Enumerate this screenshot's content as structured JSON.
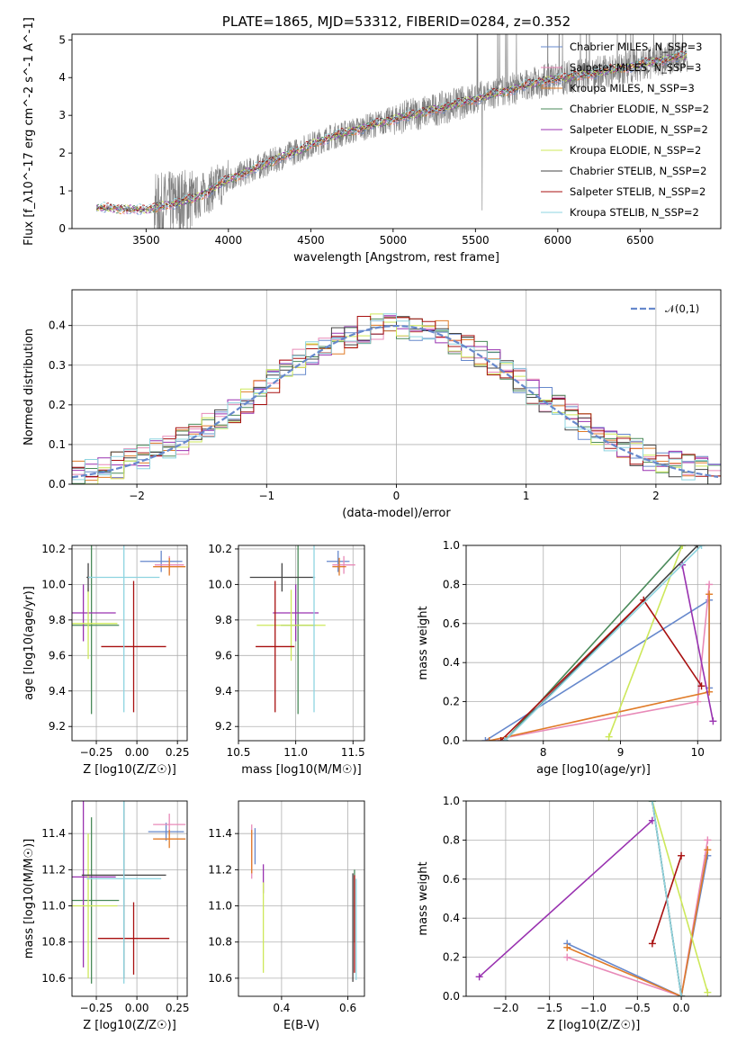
{
  "colors": [
    "#6688cc",
    "#e88ab8",
    "#e07b28",
    "#4a8a5a",
    "#9932b0",
    "#cde85a",
    "#444444",
    "#a81010",
    "#8ed4e0"
  ],
  "chart_data": [
    {
      "id": "spectrum",
      "type": "line",
      "title": "PLATE=1865, MJD=53312, FIBERID=0284, z=0.352",
      "xlabel": "wavelength [Angstrom, rest frame]",
      "ylabel": "Flux [f_λ10^-17 erg cm^-2 s^-1 A^-1]",
      "xlim": [
        3050,
        6990
      ],
      "ylim": [
        0,
        5.15
      ],
      "xticks": [
        3500,
        4000,
        4500,
        5000,
        5500,
        6000,
        6500
      ],
      "yticks": [
        0,
        1,
        2,
        3,
        4,
        5
      ],
      "grid": false,
      "legend_position": "upper-right",
      "legend": [
        "Chabrier MILES, N_SSP=3",
        "Salpeter MILES, N_SSP=3",
        "Kroupa MILES, N_SSP=3",
        "Chabrier ELODIE, N_SSP=2",
        "Salpeter ELODIE, N_SSP=2",
        "Kroupa ELODIE, N_SSP=2",
        "Chabrier STELIB, N_SSP=2",
        "Salpeter STELIB, N_SSP=2",
        "Kroupa STELIB, N_SSP=2"
      ],
      "observed_color": "#808080",
      "model_continuum": {
        "x": [
          3200,
          3500,
          3800,
          4000,
          4300,
          4600,
          4800,
          5000,
          5300,
          5600,
          5900,
          6200,
          6500,
          6790
        ],
        "y": [
          0.55,
          0.5,
          0.8,
          1.3,
          1.85,
          2.4,
          2.65,
          2.9,
          3.2,
          3.55,
          3.9,
          4.1,
          4.35,
          4.6
        ]
      }
    },
    {
      "id": "residuals",
      "type": "histogram",
      "xlabel": "(data-model)/error",
      "ylabel": "Normed distribution",
      "xlim": [
        -2.5,
        2.5
      ],
      "ylim": [
        0,
        0.49
      ],
      "xticks": [
        -2,
        -1,
        0,
        1,
        2
      ],
      "yticks": [
        0.0,
        0.1,
        0.2,
        0.3,
        0.4
      ],
      "grid": true,
      "legend_position": "upper-right",
      "legend": [
        "𝒩(0,1)"
      ],
      "bin_width": 0.1,
      "bins_start": -2.5,
      "gaussian": {
        "mean": 0,
        "sigma": 1,
        "color": "#6688cc",
        "style": "dashed"
      }
    },
    {
      "id": "age-vs-Z",
      "type": "errorbar",
      "xlabel": "Z [log10(Z/Z☉)]",
      "ylabel": "age [log10(age/yr)]",
      "xlim": [
        -0.4,
        0.31
      ],
      "ylim": [
        9.12,
        10.22
      ],
      "xticks": [
        -0.25,
        0.0,
        0.25
      ],
      "yticks": [
        9.2,
        9.4,
        9.6,
        9.8,
        10.0,
        10.2
      ],
      "grid": true,
      "points": [
        {
          "x": 0.15,
          "y": 10.13,
          "xerr": 0.13,
          "yerr": 0.06
        },
        {
          "x": 0.2,
          "y": 10.11,
          "xerr": 0.09,
          "yerr": 0.05
        },
        {
          "x": 0.2,
          "y": 10.1,
          "xerr": 0.1,
          "yerr": 0.05
        },
        {
          "x": -0.28,
          "y": 9.77,
          "xerr": 0.17,
          "yerr": 0.5
        },
        {
          "x": -0.33,
          "y": 9.84,
          "xerr": 0.2,
          "yerr": 0.16
        },
        {
          "x": -0.3,
          "y": 9.78,
          "xerr": 0.18,
          "yerr": 0.2
        },
        {
          "x": -0.3,
          "y": 10.04,
          "xerr": 0.01,
          "yerr": 0.08
        },
        {
          "x": -0.02,
          "y": 9.65,
          "xerr": 0.2,
          "yerr": 0.37
        },
        {
          "x": -0.08,
          "y": 10.04,
          "xerr": 0.22,
          "yerr": 0.76
        }
      ]
    },
    {
      "id": "age-vs-mass",
      "type": "errorbar",
      "xlabel": "mass [log10(M/M☉)]",
      "ylabel": "",
      "xlim": [
        10.5,
        11.6
      ],
      "ylim": [
        9.12,
        10.22
      ],
      "xticks": [
        10.5,
        11.0,
        11.5
      ],
      "yticks": [
        9.2,
        9.4,
        9.6,
        9.8,
        10.0,
        10.2
      ],
      "grid": true,
      "points": [
        {
          "x": 11.37,
          "y": 10.13,
          "xerr": 0.1,
          "yerr": 0.06
        },
        {
          "x": 11.42,
          "y": 10.11,
          "xerr": 0.1,
          "yerr": 0.05
        },
        {
          "x": 11.38,
          "y": 10.1,
          "xerr": 0.06,
          "yerr": 0.05
        },
        {
          "x": 11.02,
          "y": 9.77,
          "xerr": 0.15,
          "yerr": 0.5
        },
        {
          "x": 11.0,
          "y": 9.84,
          "xerr": 0.2,
          "yerr": 0.16
        },
        {
          "x": 10.96,
          "y": 9.77,
          "xerr": 0.3,
          "yerr": 0.2
        },
        {
          "x": 10.88,
          "y": 10.04,
          "xerr": 0.28,
          "yerr": 0.08
        },
        {
          "x": 10.82,
          "y": 9.65,
          "xerr": 0.17,
          "yerr": 0.37
        },
        {
          "x": 11.16,
          "y": 10.04,
          "xerr": 0.01,
          "yerr": 0.76
        }
      ]
    },
    {
      "id": "massweight-vs-age",
      "type": "line",
      "xlabel": "age [log10(age/yr)]",
      "ylabel": "mass weight",
      "xlim": [
        7.0,
        10.3
      ],
      "ylim": [
        0,
        1.0
      ],
      "xticks": [
        8,
        9,
        10
      ],
      "yticks": [
        0.0,
        0.2,
        0.4,
        0.6,
        0.8,
        1.0
      ],
      "grid": true,
      "series": [
        {
          "x": [
            7.25,
            10.15,
            10.15
          ],
          "y": [
            0.0,
            0.72,
            0.27
          ]
        },
        {
          "x": [
            7.3,
            10.0,
            10.15
          ],
          "y": [
            0.0,
            0.2,
            0.8
          ]
        },
        {
          "x": [
            7.3,
            10.15,
            10.15
          ],
          "y": [
            0.0,
            0.25,
            0.75
          ]
        },
        {
          "x": [
            7.5,
            9.8
          ],
          "y": [
            0.0,
            1.0
          ]
        },
        {
          "x": [
            9.8,
            10.2
          ],
          "y": [
            0.9,
            0.1
          ]
        },
        {
          "x": [
            8.85,
            9.8
          ],
          "y": [
            0.02,
            1.0
          ]
        },
        {
          "x": [
            7.5,
            10.0
          ],
          "y": [
            0.0,
            1.0
          ]
        },
        {
          "x": [
            7.45,
            9.3,
            10.05
          ],
          "y": [
            0.0,
            0.72,
            0.28
          ]
        },
        {
          "x": [
            7.5,
            10.05
          ],
          "y": [
            0.0,
            1.0
          ]
        }
      ]
    },
    {
      "id": "mass-vs-Z",
      "type": "errorbar",
      "xlabel": "Z [log10(Z/Z☉)]",
      "ylabel": "mass [log10(M/M☉)]",
      "xlim": [
        -0.4,
        0.31
      ],
      "ylim": [
        10.5,
        11.58
      ],
      "xticks": [
        -0.25,
        0.0,
        0.25
      ],
      "yticks": [
        10.6,
        10.8,
        11.0,
        11.2,
        11.4
      ],
      "grid": true,
      "points": [
        {
          "x": 0.18,
          "y": 11.41,
          "xerr": 0.11,
          "yerr": 0.05
        },
        {
          "x": 0.2,
          "y": 11.45,
          "xerr": 0.1,
          "yerr": 0.06
        },
        {
          "x": 0.2,
          "y": 11.37,
          "xerr": 0.1,
          "yerr": 0.05
        },
        {
          "x": -0.28,
          "y": 11.03,
          "xerr": 0.17,
          "yerr": 0.46
        },
        {
          "x": -0.33,
          "y": 11.16,
          "xerr": 0.2,
          "yerr": 0.5
        },
        {
          "x": -0.3,
          "y": 11.0,
          "xerr": 0.18,
          "yerr": 0.4
        },
        {
          "x": -0.08,
          "y": 11.17,
          "xerr": 0.26,
          "yerr": 0.57
        },
        {
          "x": -0.02,
          "y": 10.82,
          "xerr": 0.22,
          "yerr": 0.2
        },
        {
          "x": -0.08,
          "y": 11.15,
          "xerr": 0.23,
          "yerr": 0.58
        }
      ]
    },
    {
      "id": "mass-vs-EBV",
      "type": "errorbar",
      "xlabel": "E(B-V)",
      "ylabel": "",
      "xlim": [
        0.27,
        0.65
      ],
      "ylim": [
        10.5,
        11.58
      ],
      "xticks": [
        0.4,
        0.6
      ],
      "yticks": [
        10.6,
        10.8,
        11.0,
        11.2,
        11.4
      ],
      "grid": true,
      "points": [
        {
          "x": 0.32,
          "y": 11.33,
          "xerr": 0.0,
          "yerr": 0.1
        },
        {
          "x": 0.31,
          "y": 11.3,
          "xerr": 0.0,
          "yerr": 0.15
        },
        {
          "x": 0.31,
          "y": 11.3,
          "xerr": 0.0,
          "yerr": 0.12
        },
        {
          "x": 0.62,
          "y": 11.0,
          "xerr": 0.0,
          "yerr": 0.2
        },
        {
          "x": 0.345,
          "y": 11.15,
          "xerr": 0.0,
          "yerr": 0.08
        },
        {
          "x": 0.345,
          "y": 10.88,
          "xerr": 0.0,
          "yerr": 0.25
        },
        {
          "x": 0.615,
          "y": 10.88,
          "xerr": 0.0,
          "yerr": 0.3
        },
        {
          "x": 0.62,
          "y": 10.9,
          "xerr": 0.0,
          "yerr": 0.27
        },
        {
          "x": 0.625,
          "y": 10.87,
          "xerr": 0.0,
          "yerr": 0.28
        }
      ]
    },
    {
      "id": "massweight-vs-Z",
      "type": "line",
      "xlabel": "Z [log10(Z/Z☉)]",
      "ylabel": "mass weight",
      "xlim": [
        -2.45,
        0.45
      ],
      "ylim": [
        0,
        1.0
      ],
      "xticks": [
        -2.0,
        -1.5,
        -1.0,
        -0.5,
        0.0
      ],
      "yticks": [
        0.0,
        0.2,
        0.4,
        0.6,
        0.8,
        1.0
      ],
      "grid": true,
      "series": [
        {
          "x": [
            -1.3,
            0.0,
            0.3
          ],
          "y": [
            0.27,
            0.0,
            0.72
          ]
        },
        {
          "x": [
            -1.3,
            0.0,
            0.3
          ],
          "y": [
            0.2,
            0.0,
            0.8
          ]
        },
        {
          "x": [
            -1.3,
            0.0,
            0.3
          ],
          "y": [
            0.25,
            0.0,
            0.75
          ]
        },
        {
          "x": [
            -0.33,
            0.0
          ],
          "y": [
            1.0,
            0.0
          ]
        },
        {
          "x": [
            -2.3,
            -0.33
          ],
          "y": [
            0.1,
            0.9
          ]
        },
        {
          "x": [
            -0.33,
            0.3
          ],
          "y": [
            1.0,
            0.02
          ]
        },
        {
          "x": [
            -0.33,
            0.0
          ],
          "y": [
            1.0,
            0.0
          ]
        },
        {
          "x": [
            -0.33,
            0.0
          ],
          "y": [
            0.27,
            0.72
          ]
        },
        {
          "x": [
            -0.33,
            0.0
          ],
          "y": [
            1.0,
            0.0
          ]
        }
      ]
    }
  ]
}
